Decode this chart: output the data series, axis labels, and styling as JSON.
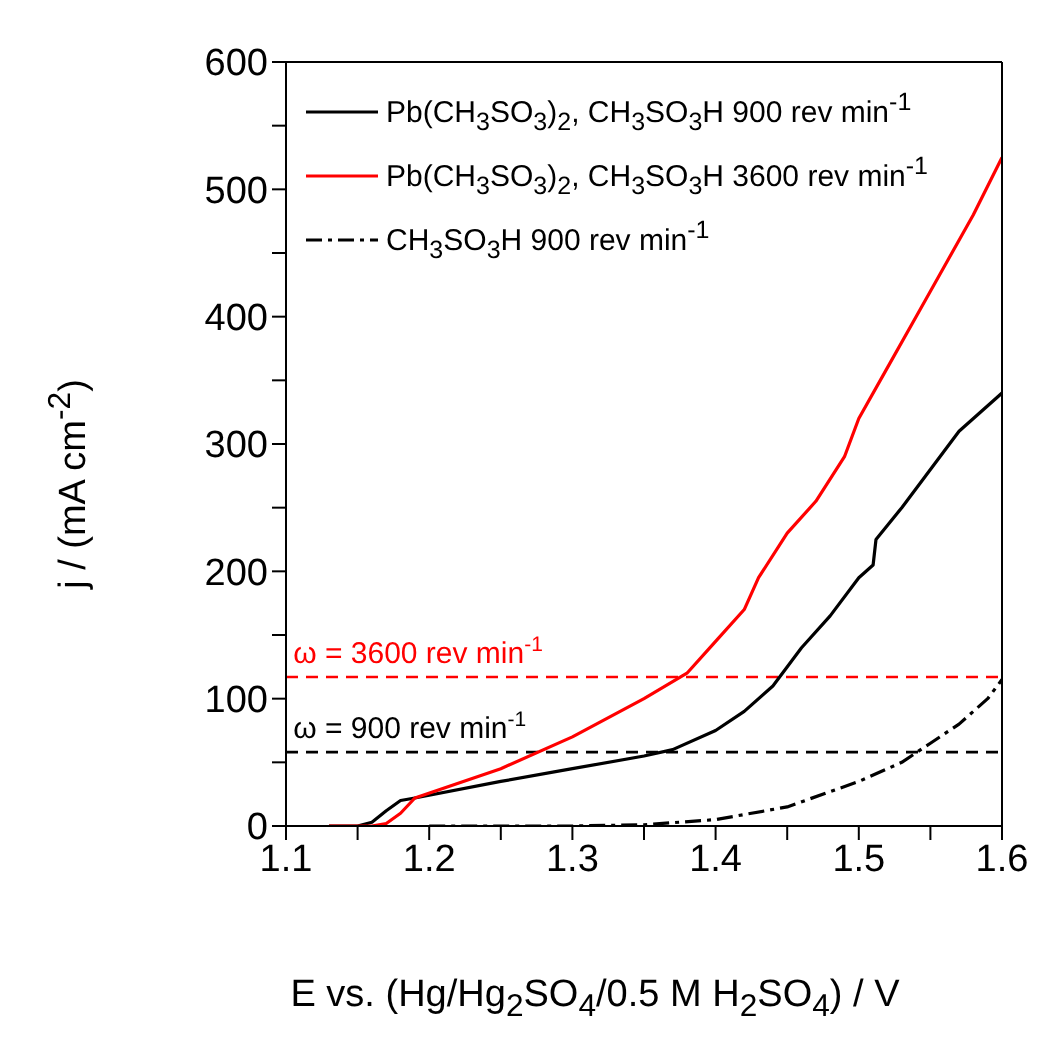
{
  "chart_data": {
    "type": "line",
    "xlabel": "E vs. (Hg/Hg$_{2}$SO$_{4}$/0.5 M H$_{2}$SO$_{4}$)  /  V",
    "ylabel": "j  /  (mA cm$^{-2}$)",
    "xlim": [
      1.1,
      1.6
    ],
    "xticks": [
      1.1,
      {
        "value": 1.15,
        "label": null
      },
      1.2,
      {
        "value": 1.25,
        "label": null
      },
      1.3,
      {
        "value": 1.35,
        "label": null
      },
      1.4,
      {
        "value": 1.45,
        "label": null
      },
      1.5,
      {
        "value": 1.55,
        "label": null
      },
      1.6
    ],
    "ylim": [
      0,
      600
    ],
    "yticks": [
      0,
      {
        "value": 50,
        "label": null
      },
      100,
      {
        "value": 150,
        "label": null
      },
      200,
      {
        "value": 250,
        "label": null
      },
      300,
      {
        "value": 350,
        "label": null
      },
      400,
      {
        "value": 450,
        "label": null
      },
      500,
      {
        "value": 550,
        "label": null
      },
      600
    ],
    "grid": false,
    "legend": "top left",
    "marker": "none",
    "series": [
      {
        "name": "Pb(CH$_{3}$SO$_{3}$)$_{2}$, CH$_{3}$SO$_{3}$H 900 rev min$^{-1}$",
        "color": "#000000",
        "line_style": "solid",
        "x": [
          1.13,
          1.15,
          1.16,
          1.17,
          1.18,
          1.19,
          1.25,
          1.3,
          1.35,
          1.37,
          1.4,
          1.42,
          1.44,
          1.46,
          1.48,
          1.5,
          1.51,
          1.512,
          1.53,
          1.55,
          1.57,
          1.6
        ],
        "values": [
          0,
          0,
          3,
          12,
          20,
          22,
          35,
          45,
          55,
          60,
          75,
          90,
          110,
          140,
          165,
          195,
          205,
          225,
          250,
          280,
          310,
          340
        ]
      },
      {
        "name": "Pb(CH$_{3}$SO$_{3}$)$_{2}$, CH$_{3}$SO$_{3}$H 3600 rev min$^{-1}$",
        "color": "#ff0000",
        "line_style": "solid",
        "x": [
          1.13,
          1.16,
          1.17,
          1.18,
          1.19,
          1.25,
          1.3,
          1.35,
          1.38,
          1.4,
          1.42,
          1.43,
          1.45,
          1.47,
          1.49,
          1.5,
          1.52,
          1.54,
          1.56,
          1.58,
          1.6
        ],
        "values": [
          0,
          0,
          2,
          10,
          22,
          45,
          70,
          100,
          120,
          145,
          170,
          195,
          230,
          255,
          290,
          320,
          360,
          400,
          440,
          480,
          525
        ]
      },
      {
        "name": "CH$_{3}$SO$_{3}$H 900 rev min$^{-1}$",
        "color": "#000000",
        "line_style": "dashdot",
        "x": [
          1.2,
          1.3,
          1.35,
          1.4,
          1.45,
          1.5,
          1.53,
          1.55,
          1.57,
          1.59,
          1.6
        ],
        "values": [
          0,
          0,
          1,
          5,
          15,
          35,
          50,
          65,
          80,
          100,
          115
        ]
      }
    ],
    "ref_lines": [
      {
        "axis": "y",
        "value": 117,
        "color": "#ff0000",
        "line_style": "dashed"
      },
      {
        "axis": "y",
        "value": 58,
        "color": "#000000",
        "line_style": "dashed"
      }
    ],
    "annotations": [
      {
        "text": "ω = 3600 rev min$^{-1}$",
        "x": 1.105,
        "y": 117
      },
      {
        "text": "ω = 900 rev min$^{-1}$",
        "x": 1.105,
        "y": 58
      }
    ]
  }
}
